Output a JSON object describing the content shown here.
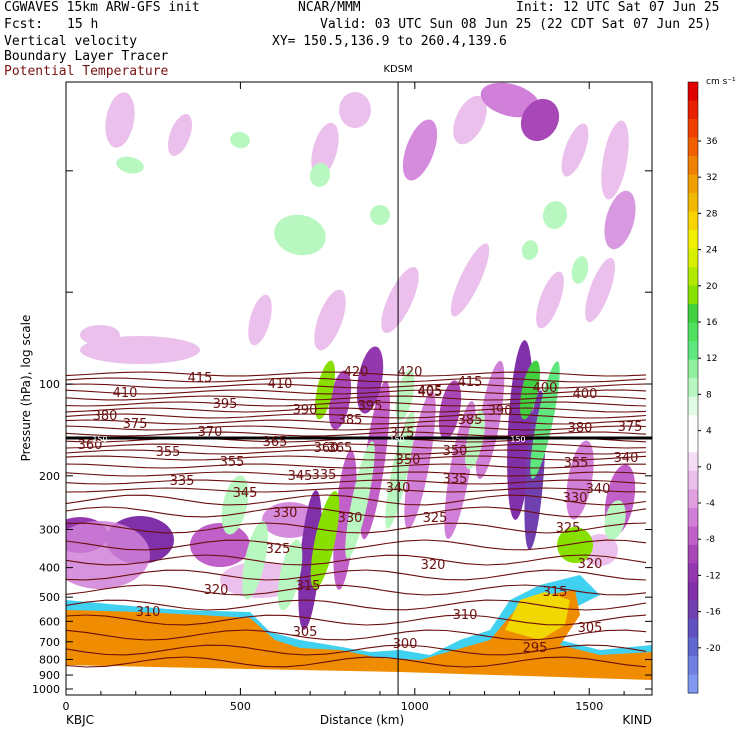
{
  "header": {
    "model": "CGWAVES 15km ARW-GFS init",
    "fcst_label": "Fcst:",
    "fcst_value": "15 h",
    "org": "NCAR/MMM",
    "init": "Init: 12 UTC Sat 07 Jun 25",
    "valid": "Valid: 03 UTC Sun 08 Jun 25 (22 CDT Sat 07 Jun 25)",
    "xy": "XY= 150.5,136.9 to 260.4,139.6",
    "field1": "Vertical velocity",
    "field2": "Boundary Layer Tracer",
    "field3": "Potential Temperature",
    "field3_color": "#7a1414"
  },
  "chart_data": {
    "type": "heatmap",
    "xlabel": "Distance (km)",
    "ylabel": "Pressure (hPa), log scale",
    "x_ticks": [
      "0",
      "500",
      "1000",
      "1500"
    ],
    "xlim": [
      0,
      1680
    ],
    "y_ticks": [
      "100",
      "200",
      "300",
      "400",
      "500",
      "600",
      "700",
      "800",
      "900",
      "1000"
    ],
    "ylim_hpa": [
      1050,
      10
    ],
    "y_log": true,
    "left_endpoint": "KBJC",
    "right_endpoint": "KIND",
    "station_marker": {
      "label": "KDSM",
      "x_km": 952
    },
    "tropopause_marker_label": "150",
    "colorbar": {
      "unit": "cm s⁻¹",
      "tick_labels": [
        "36",
        "32",
        "28",
        "24",
        "20",
        "16",
        "12",
        "8",
        "4",
        "0",
        "-4",
        "-8",
        "-12",
        "-16",
        "-20"
      ],
      "colors": [
        "#e00000",
        "#e82000",
        "#f04000",
        "#f06000",
        "#f08000",
        "#f0a000",
        "#f0b800",
        "#f8d400",
        "#f0f000",
        "#d8f000",
        "#b0ea00",
        "#88e000",
        "#40d040",
        "#50e060",
        "#60e880",
        "#90f0a0",
        "#b8f8c0",
        "#e0fce4",
        "#ffffff",
        "#ffffff",
        "#f6dcf6",
        "#ecc0ec",
        "#e0a0e0",
        "#d080d8",
        "#c060c8",
        "#a848b8",
        "#9438b0",
        "#8030a8",
        "#7040b0",
        "#6050c0",
        "#6068d0",
        "#7080e0",
        "#8098f0"
      ]
    },
    "theta_contour_labels": [
      "415",
      "420",
      "420",
      "415",
      "410",
      "405",
      "400",
      "410",
      "395",
      "390",
      "385",
      "395",
      "405",
      "385",
      "390",
      "400",
      "380",
      "375",
      "370",
      "375",
      "380",
      "375",
      "360",
      "355",
      "365",
      "360",
      "365",
      "350",
      "355",
      "350",
      "355",
      "340",
      "335",
      "345",
      "345",
      "335",
      "340",
      "335",
      "340",
      "330",
      "330",
      "330",
      "325",
      "325",
      "325",
      "320",
      "320",
      "320",
      "315",
      "315",
      "310",
      "310",
      "305",
      "305",
      "300",
      "295"
    ]
  }
}
